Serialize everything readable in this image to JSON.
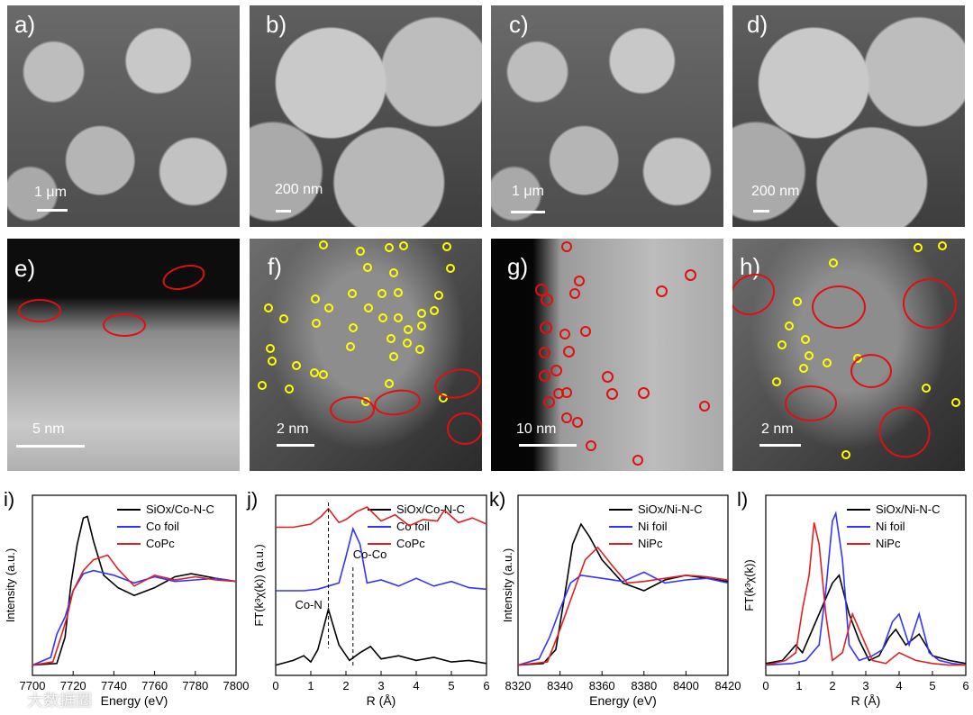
{
  "panels_top": [
    {
      "id": "a",
      "label": "a)",
      "scale": "1 μm",
      "style": "sem"
    },
    {
      "id": "b",
      "label": "b)",
      "scale": "200 nm",
      "style": "semz"
    },
    {
      "id": "c",
      "label": "c)",
      "scale": "1 μm",
      "style": "sem"
    },
    {
      "id": "d",
      "label": "d)",
      "scale": "200 nm",
      "style": "semz"
    }
  ],
  "panels_mid": [
    {
      "id": "e",
      "label": "e)",
      "scale": "5 nm",
      "style": "stem-e"
    },
    {
      "id": "f",
      "label": "f)",
      "scale": "2 nm",
      "style": "stem"
    },
    {
      "id": "g",
      "label": "g)",
      "scale": "10 nm",
      "style": "stem-g"
    },
    {
      "id": "h",
      "label": "h)",
      "scale": "2 nm",
      "style": "stem"
    }
  ],
  "chart_data": [
    {
      "id": "i",
      "label": "i)",
      "type": "line",
      "xlabel": "Energy (eV)",
      "ylabel": "Intensity (a.u.)",
      "xlim": [
        7700,
        7800
      ],
      "xticks": [
        7700,
        7720,
        7740,
        7760,
        7780,
        7800
      ],
      "series": [
        {
          "name": "SiOx/Co-N-C",
          "color": "#000000",
          "x": [
            7700,
            7712,
            7716,
            7719,
            7722,
            7725,
            7727,
            7730,
            7735,
            7742,
            7750,
            7760,
            7770,
            7778,
            7790,
            7800
          ],
          "y": [
            0.02,
            0.03,
            0.2,
            0.55,
            0.8,
            0.97,
            0.98,
            0.82,
            0.6,
            0.52,
            0.47,
            0.52,
            0.59,
            0.61,
            0.58,
            0.56
          ]
        },
        {
          "name": "Co foil",
          "color": "#3333ff",
          "x": [
            7700,
            7709,
            7712,
            7716,
            7720,
            7725,
            7730,
            7740,
            7750,
            7760,
            7770,
            7780,
            7790,
            7800
          ],
          "y": [
            0.02,
            0.07,
            0.22,
            0.33,
            0.5,
            0.61,
            0.63,
            0.6,
            0.55,
            0.59,
            0.56,
            0.57,
            0.58,
            0.56
          ]
        },
        {
          "name": "CoPc",
          "color": "#e02020",
          "x": [
            7700,
            7710,
            7714,
            7717,
            7720,
            7725,
            7730,
            7737,
            7742,
            7750,
            7760,
            7770,
            7780,
            7790,
            7800
          ],
          "y": [
            0.02,
            0.04,
            0.2,
            0.33,
            0.5,
            0.63,
            0.7,
            0.73,
            0.64,
            0.53,
            0.6,
            0.57,
            0.59,
            0.57,
            0.56
          ]
        }
      ]
    },
    {
      "id": "j",
      "label": "j)",
      "type": "line",
      "xlabel": "R (Å)",
      "ylabel": "FT(k³χ(k)) (a.u.)",
      "xlim": [
        0,
        6
      ],
      "xticks": [
        0,
        1,
        2,
        3,
        4,
        5,
        6
      ],
      "annotations": [
        "Co-N",
        "Co-Co"
      ],
      "series": [
        {
          "name": "SiOx/Co-N-C",
          "color": "#000000",
          "x": [
            0,
            0.5,
            0.8,
            1.0,
            1.2,
            1.5,
            1.8,
            2.1,
            2.4,
            2.7,
            3.0,
            3.5,
            4.0,
            4.5,
            5.0,
            5.5,
            6.0
          ],
          "y": [
            0.02,
            0.05,
            0.08,
            0.04,
            0.12,
            0.38,
            0.15,
            0.05,
            0.1,
            0.14,
            0.06,
            0.08,
            0.05,
            0.07,
            0.04,
            0.05,
            0.03
          ]
        },
        {
          "name": "Co foil",
          "color": "#3333ff",
          "x": [
            0,
            0.8,
            1.2,
            1.5,
            1.8,
            2.0,
            2.2,
            2.4,
            2.6,
            3.0,
            3.5,
            4.0,
            4.5,
            5.0,
            5.5,
            6.0
          ],
          "y": [
            0.5,
            0.5,
            0.51,
            0.53,
            0.55,
            0.72,
            0.9,
            0.8,
            0.55,
            0.57,
            0.53,
            0.58,
            0.53,
            0.56,
            0.52,
            0.51
          ]
        },
        {
          "name": "CoPc",
          "color": "#e02020",
          "x": [
            0,
            0.5,
            1.0,
            1.3,
            1.5,
            1.8,
            2.0,
            2.3,
            2.6,
            3.0,
            3.4,
            3.8,
            4.2,
            4.6,
            4.8,
            5.2,
            5.6,
            6.0
          ],
          "y": [
            0.91,
            0.91,
            0.93,
            0.98,
            1.03,
            0.94,
            0.96,
            1.01,
            1.04,
            0.95,
            0.99,
            0.92,
            0.96,
            0.95,
            1.02,
            0.94,
            0.97,
            0.93
          ]
        }
      ]
    },
    {
      "id": "k",
      "label": "k)",
      "type": "line",
      "xlabel": "Energy (eV)",
      "ylabel": "Intensity (a.u.)",
      "xlim": [
        8320,
        8420
      ],
      "xticks": [
        8320,
        8340,
        8360,
        8380,
        8400,
        8420
      ],
      "series": [
        {
          "name": "SiOx/Ni-N-C",
          "color": "#000000",
          "x": [
            8320,
            8332,
            8338,
            8342,
            8346,
            8350,
            8354,
            8360,
            8370,
            8380,
            8390,
            8400,
            8410,
            8420
          ],
          "y": [
            0.02,
            0.03,
            0.12,
            0.45,
            0.8,
            0.93,
            0.85,
            0.7,
            0.55,
            0.5,
            0.57,
            0.6,
            0.58,
            0.56
          ]
        },
        {
          "name": "Ni foil",
          "color": "#3333ff",
          "x": [
            8320,
            8330,
            8335,
            8340,
            8345,
            8350,
            8360,
            8370,
            8380,
            8390,
            8400,
            8410,
            8420
          ],
          "y": [
            0.02,
            0.06,
            0.2,
            0.38,
            0.55,
            0.6,
            0.58,
            0.56,
            0.62,
            0.55,
            0.57,
            0.58,
            0.55
          ]
        },
        {
          "name": "NiPc",
          "color": "#e02020",
          "x": [
            8320,
            8334,
            8340,
            8344,
            8348,
            8352,
            8358,
            8365,
            8372,
            8380,
            8390,
            8400,
            8410,
            8420
          ],
          "y": [
            0.02,
            0.04,
            0.25,
            0.4,
            0.55,
            0.7,
            0.78,
            0.66,
            0.55,
            0.56,
            0.58,
            0.6,
            0.59,
            0.57
          ]
        }
      ]
    },
    {
      "id": "l",
      "label": "l)",
      "type": "line",
      "xlabel": "R (Å)",
      "ylabel": "FT(k³χ(k))",
      "xlim": [
        0,
        6
      ],
      "xticks": [
        0,
        1,
        2,
        3,
        4,
        5,
        6
      ],
      "series": [
        {
          "name": "SiOx/Ni-N-C",
          "color": "#000000",
          "x": [
            0,
            0.5,
            0.9,
            1.1,
            1.4,
            1.7,
            2.0,
            2.2,
            2.5,
            2.8,
            3.1,
            3.4,
            3.7,
            3.9,
            4.2,
            4.6,
            5.0,
            5.5,
            6.0
          ],
          "y": [
            0.03,
            0.05,
            0.15,
            0.1,
            0.25,
            0.4,
            0.55,
            0.6,
            0.35,
            0.18,
            0.05,
            0.08,
            0.2,
            0.25,
            0.15,
            0.22,
            0.08,
            0.05,
            0.03
          ]
        },
        {
          "name": "Ni foil",
          "color": "#3333ff",
          "x": [
            0,
            0.8,
            1.2,
            1.6,
            1.8,
            2.0,
            2.1,
            2.3,
            2.5,
            2.8,
            3.2,
            3.5,
            3.8,
            4.0,
            4.3,
            4.6,
            4.9,
            5.2,
            5.6,
            6.0
          ],
          "y": [
            0.02,
            0.03,
            0.05,
            0.15,
            0.5,
            0.95,
            1.0,
            0.7,
            0.15,
            0.05,
            0.08,
            0.12,
            0.3,
            0.35,
            0.15,
            0.35,
            0.1,
            0.05,
            0.03,
            0.02
          ]
        },
        {
          "name": "NiPc",
          "color": "#e02020",
          "x": [
            0,
            0.6,
            0.9,
            1.1,
            1.3,
            1.45,
            1.6,
            1.8,
            2.0,
            2.3,
            2.6,
            2.9,
            3.2,
            3.6,
            4.0,
            4.5,
            5.0,
            5.5,
            6.0
          ],
          "y": [
            0.02,
            0.05,
            0.1,
            0.38,
            0.6,
            0.94,
            0.8,
            0.35,
            0.05,
            0.1,
            0.35,
            0.2,
            0.05,
            0.03,
            0.1,
            0.05,
            0.03,
            0.02,
            0.02
          ]
        }
      ]
    }
  ],
  "watermark": "大数据圈"
}
